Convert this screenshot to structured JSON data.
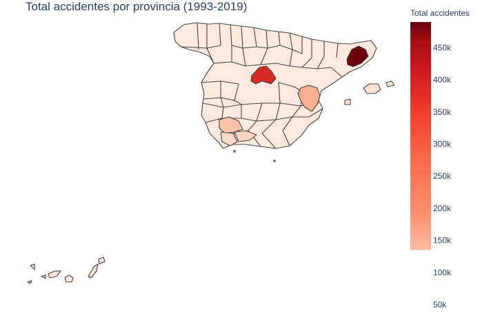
{
  "title": "Total accidentes por provincia (1993-2019)",
  "chart_data": {
    "type": "choropleth",
    "title": "Total accidentes por provincia (1993-2019)",
    "colorbar": {
      "title": "Total accidentes",
      "range": [
        50000,
        490000
      ],
      "ticks": [
        50000,
        100000,
        150000,
        200000,
        250000,
        300000,
        350000,
        400000,
        450000
      ],
      "tick_labels": [
        "50k",
        "100k",
        "150k",
        "200k",
        "250k",
        "300k",
        "350k",
        "400k",
        "450k"
      ],
      "colorscale": "Reds",
      "gradient_visible_from": 135000
    },
    "regions": [
      {
        "label": "Barcelona",
        "value": 485000
      },
      {
        "label": "Madrid",
        "value": 385000
      },
      {
        "label": "Valencia",
        "value": 180000
      },
      {
        "label": "Sevilla",
        "value": 165000
      },
      {
        "label": "Málaga",
        "value": 158000
      }
    ]
  }
}
